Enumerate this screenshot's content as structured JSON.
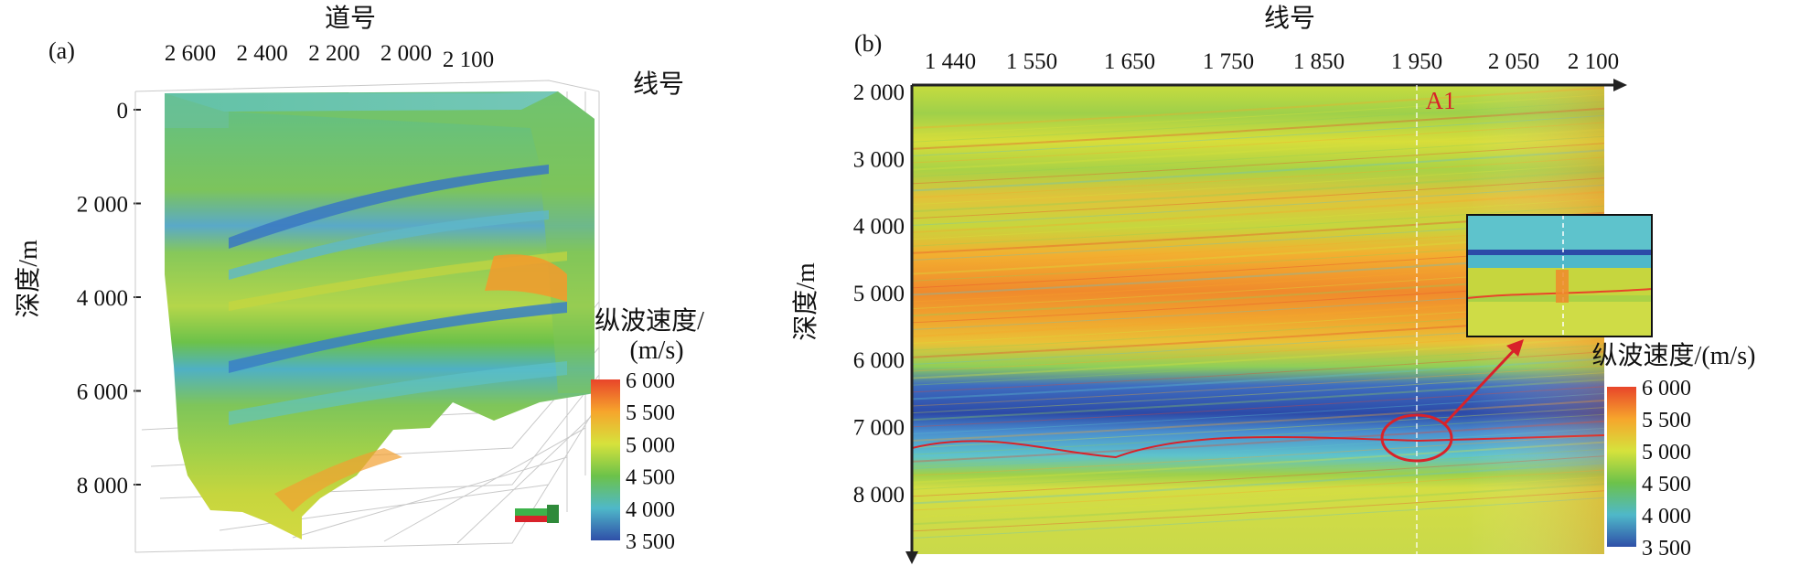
{
  "panel_a": {
    "label": "(a)",
    "x_title": "道号",
    "x_ticks": [
      {
        "v": 2600,
        "label": "2 600"
      },
      {
        "v": 2400,
        "label": "2 400"
      },
      {
        "v": 2200,
        "label": "2 200"
      },
      {
        "v": 2000,
        "label": "2 000"
      }
    ],
    "line_tick": {
      "v": 2100,
      "label": "2 100"
    },
    "line_title": "线号",
    "y_title": "深度/m",
    "y_ticks": [
      {
        "v": 0,
        "label": "0"
      },
      {
        "v": 2000,
        "label": "2 000"
      },
      {
        "v": 4000,
        "label": "4 000"
      },
      {
        "v": 6000,
        "label": "6 000"
      },
      {
        "v": 8000,
        "label": "8 000"
      }
    ],
    "colorbar_title": [
      "纵波速度/",
      "(m/s)"
    ],
    "colorbar_ticks": [
      {
        "v": 6000,
        "label": "6 000"
      },
      {
        "v": 5500,
        "label": "5 500"
      },
      {
        "v": 5000,
        "label": "5 000"
      },
      {
        "v": 4500,
        "label": "4 500"
      },
      {
        "v": 4000,
        "label": "4 000"
      },
      {
        "v": 3500,
        "label": "3 500"
      }
    ]
  },
  "panel_b": {
    "label": "(b)",
    "x_title": "线号",
    "x_ticks": [
      {
        "v": 1440,
        "label": "1 440"
      },
      {
        "v": 1550,
        "label": "1 550"
      },
      {
        "v": 1650,
        "label": "1 650"
      },
      {
        "v": 1750,
        "label": "1 750"
      },
      {
        "v": 1850,
        "label": "1 850"
      },
      {
        "v": 1950,
        "label": "1 950"
      },
      {
        "v": 2050,
        "label": "2 050"
      },
      {
        "v": 2100,
        "label": "2 100"
      }
    ],
    "y_title": "深度/m",
    "y_ticks": [
      {
        "v": 2000,
        "label": "2 000"
      },
      {
        "v": 3000,
        "label": "3 000"
      },
      {
        "v": 4000,
        "label": "4 000"
      },
      {
        "v": 5000,
        "label": "5 000"
      },
      {
        "v": 6000,
        "label": "6 000"
      },
      {
        "v": 7000,
        "label": "7 000"
      },
      {
        "v": 8000,
        "label": "8 000"
      }
    ],
    "well_label": "A1",
    "colorbar_title": "纵波速度/(m/s)",
    "colorbar_ticks": [
      {
        "v": 6000,
        "label": "6 000"
      },
      {
        "v": 5500,
        "label": "5 500"
      },
      {
        "v": 5000,
        "label": "5 000"
      },
      {
        "v": 4500,
        "label": "4 500"
      },
      {
        "v": 4000,
        "label": "4 000"
      },
      {
        "v": 3500,
        "label": "3 500"
      }
    ]
  },
  "colors": {
    "v6000": "#e8452a",
    "v5500": "#f6a52c",
    "v5000": "#d6e23c",
    "v4500": "#6cc24a",
    "v4000": "#4fb8c9",
    "v3500": "#2f4fa8",
    "annotation": "#d8222a"
  }
}
